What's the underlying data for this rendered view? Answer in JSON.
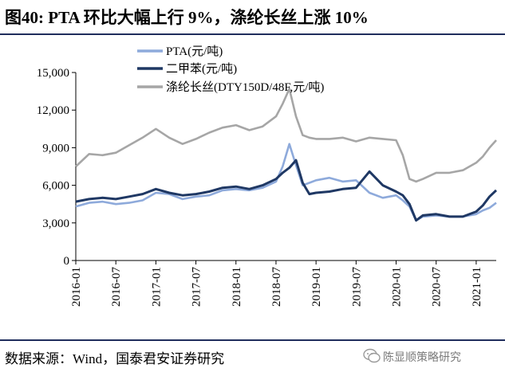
{
  "figure": {
    "title": "图40: PTA 环比大幅上行 9%，涤纶长丝上涨 10%",
    "source": "数据来源：Wind，国泰君安证券研究",
    "brand": "陈显顺策略研究"
  },
  "colors": {
    "rule": "#1f2d5c",
    "series": [
      "#8eaadb",
      "#1f3864",
      "#a6a6a6"
    ]
  },
  "chart_data": {
    "type": "line",
    "title": "图40: PTA 环比大幅上行 9%，涤纶长丝上涨 10%",
    "ylim": [
      0,
      15000
    ],
    "yticks": [
      "0",
      "3,000",
      "6,000",
      "9,000",
      "12,000",
      "15,000"
    ],
    "ytick_values": [
      0,
      3000,
      6000,
      9000,
      12000,
      15000
    ],
    "xticks": [
      "2016-01",
      "2016-07",
      "2017-01",
      "2017-07",
      "2018-01",
      "2018-07",
      "2019-01",
      "2019-07",
      "2020-01",
      "2020-07",
      "2021-01"
    ],
    "xlim": [
      "2016-01",
      "2021-04"
    ],
    "legend_position": "top",
    "grid": false,
    "series": [
      {
        "name": "PTA(元/吨)",
        "x": [
          "2016-01",
          "2016-03",
          "2016-05",
          "2016-07",
          "2016-09",
          "2016-11",
          "2017-01",
          "2017-03",
          "2017-05",
          "2017-07",
          "2017-09",
          "2017-11",
          "2018-01",
          "2018-03",
          "2018-05",
          "2018-07",
          "2018-08",
          "2018-09",
          "2018-10",
          "2018-11",
          "2018-12",
          "2019-01",
          "2019-03",
          "2019-05",
          "2019-07",
          "2019-09",
          "2019-11",
          "2020-01",
          "2020-02",
          "2020-03",
          "2020-04",
          "2020-05",
          "2020-07",
          "2020-09",
          "2020-11",
          "2021-01",
          "2021-02",
          "2021-03",
          "2021-04"
        ],
        "values": [
          4300,
          4600,
          4700,
          4500,
          4600,
          4800,
          5400,
          5300,
          4900,
          5100,
          5200,
          5600,
          5700,
          5600,
          5800,
          6300,
          7500,
          9300,
          7600,
          6000,
          6200,
          6400,
          6600,
          6300,
          6400,
          5400,
          5000,
          5200,
          4800,
          4300,
          3200,
          3500,
          3600,
          3500,
          3500,
          3700,
          4000,
          4200,
          4600
        ]
      },
      {
        "name": "二甲苯(元/吨)",
        "x": [
          "2016-01",
          "2016-03",
          "2016-05",
          "2016-07",
          "2016-09",
          "2016-11",
          "2017-01",
          "2017-03",
          "2017-05",
          "2017-07",
          "2017-09",
          "2017-11",
          "2018-01",
          "2018-03",
          "2018-05",
          "2018-07",
          "2018-08",
          "2018-09",
          "2018-10",
          "2018-11",
          "2018-12",
          "2019-01",
          "2019-03",
          "2019-05",
          "2019-07",
          "2019-09",
          "2019-11",
          "2020-01",
          "2020-02",
          "2020-03",
          "2020-04",
          "2020-05",
          "2020-07",
          "2020-09",
          "2020-11",
          "2021-01",
          "2021-02",
          "2021-03",
          "2021-04"
        ],
        "values": [
          4700,
          4900,
          5000,
          4900,
          5100,
          5300,
          5700,
          5400,
          5200,
          5300,
          5500,
          5800,
          5900,
          5700,
          6000,
          6500,
          7000,
          7400,
          8000,
          6200,
          5300,
          5400,
          5500,
          5700,
          5800,
          7100,
          6000,
          5500,
          5200,
          4500,
          3200,
          3600,
          3700,
          3500,
          3500,
          3900,
          4400,
          5100,
          5600
        ]
      },
      {
        "name": "涤纶长丝(DTY150D/48F,元/吨)",
        "x": [
          "2016-01",
          "2016-03",
          "2016-05",
          "2016-07",
          "2016-09",
          "2016-11",
          "2017-01",
          "2017-03",
          "2017-05",
          "2017-07",
          "2017-09",
          "2017-11",
          "2018-01",
          "2018-03",
          "2018-05",
          "2018-07",
          "2018-08",
          "2018-09",
          "2018-10",
          "2018-11",
          "2018-12",
          "2019-01",
          "2019-03",
          "2019-05",
          "2019-07",
          "2019-09",
          "2019-11",
          "2020-01",
          "2020-02",
          "2020-03",
          "2020-04",
          "2020-05",
          "2020-07",
          "2020-09",
          "2020-11",
          "2021-01",
          "2021-02",
          "2021-03",
          "2021-04"
        ],
        "values": [
          7500,
          8500,
          8400,
          8600,
          9200,
          9800,
          10500,
          9800,
          9300,
          9700,
          10200,
          10600,
          10800,
          10400,
          10700,
          11500,
          12500,
          13700,
          11500,
          10000,
          9800,
          9700,
          9700,
          9800,
          9500,
          9800,
          9700,
          9600,
          8400,
          6500,
          6300,
          6500,
          7000,
          7000,
          7200,
          7800,
          8300,
          9000,
          9600
        ]
      }
    ]
  }
}
